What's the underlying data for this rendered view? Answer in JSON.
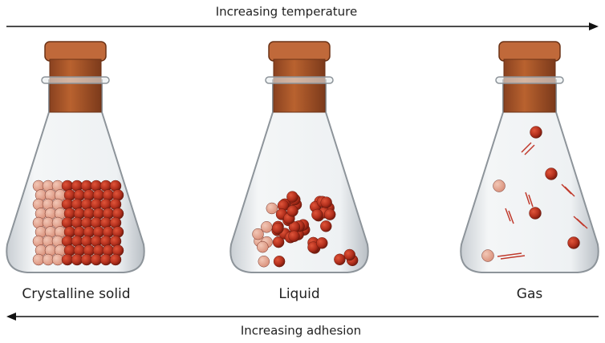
{
  "top_arrow": {
    "label": "Increasing temperature"
  },
  "flasks": [
    {
      "label": "Crystalline solid"
    },
    {
      "label": "Liquid"
    },
    {
      "label": "Gas"
    }
  ],
  "bottom_arrow": {
    "label": "Increasing adhesion"
  }
}
